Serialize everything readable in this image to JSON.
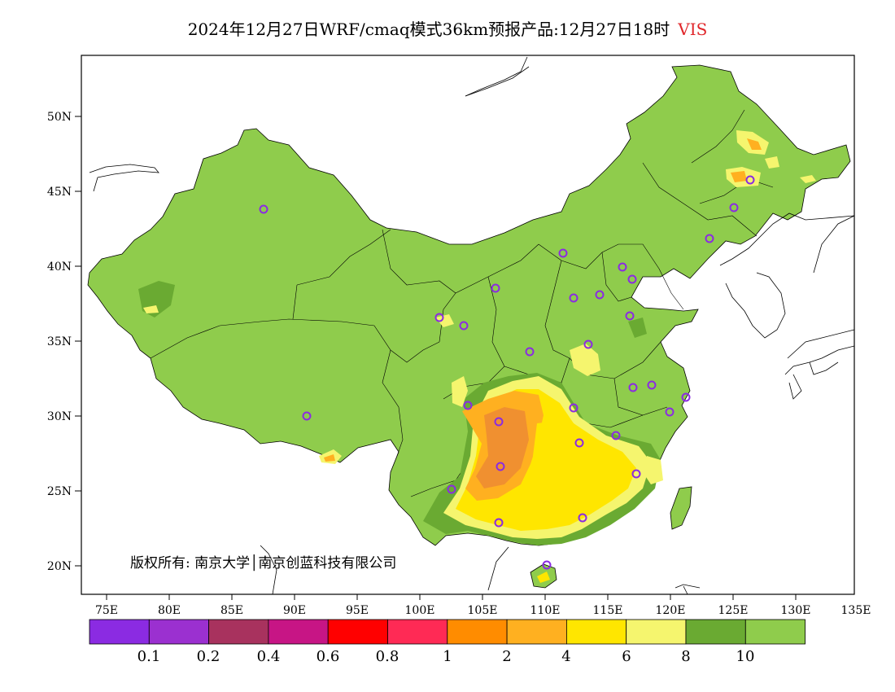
{
  "title": {
    "main": "2024年12月27日WRF/cmaq模式36km预报产品:12月27日18时",
    "variable": "VIS"
  },
  "axes": {
    "lat_labels": [
      "50N",
      "45N",
      "40N",
      "35N",
      "30N",
      "25N",
      "20N"
    ],
    "lon_labels": [
      "75E",
      "80E",
      "85E",
      "90E",
      "95E",
      "100E",
      "105E",
      "110E",
      "115E",
      "120E",
      "125E",
      "130E",
      "135E"
    ]
  },
  "copyright": "版权所有: 南京大学│南京创蓝科技有限公司",
  "colorbar": {
    "colors": [
      "#8b2be2",
      "#9b30d0",
      "#a8325e",
      "#c71585",
      "#ff0000",
      "#ff2a55",
      "#ff8c00",
      "#ffb020",
      "#ffe600",
      "#f5f56e",
      "#6aaa32",
      "#8fcc4c"
    ],
    "labels": [
      "0.1",
      "0.2",
      "0.4",
      "0.6",
      "0.8",
      "1",
      "2",
      "4",
      "6",
      "8",
      "10"
    ]
  },
  "map_colors": {
    "land": "#8fcc4c",
    "dark_green": "#6aaa32",
    "light_yellow": "#f5f56e",
    "yellow": "#ffe600",
    "orange_light": "#ffb020",
    "orange": "#f7a030",
    "station": "#8b2be2"
  }
}
